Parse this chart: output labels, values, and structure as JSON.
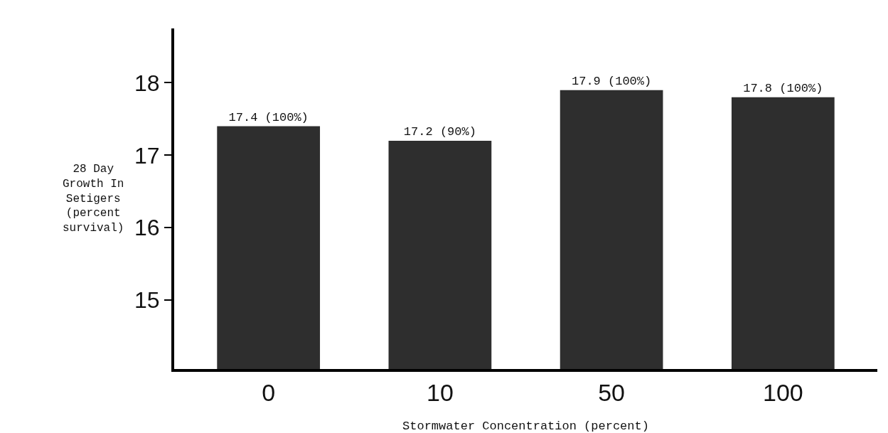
{
  "chart_data": {
    "type": "bar",
    "xlabel": "Stormwater Concentration (percent)",
    "ylabel": "28 Day Growth In Setigers (percent survival)",
    "categories": [
      "0",
      "10",
      "50",
      "100"
    ],
    "values": [
      17.4,
      17.2,
      17.9,
      17.8
    ],
    "value_labels": [
      "17.4 (100%)",
      "17.2 (90%)",
      "17.9 (100%)",
      "17.8 (100%)"
    ],
    "color": "#2e2e2e",
    "ylim": [
      14.05,
      18.75
    ],
    "yticks": [
      15,
      16,
      17,
      18
    ],
    "grid": false
  }
}
